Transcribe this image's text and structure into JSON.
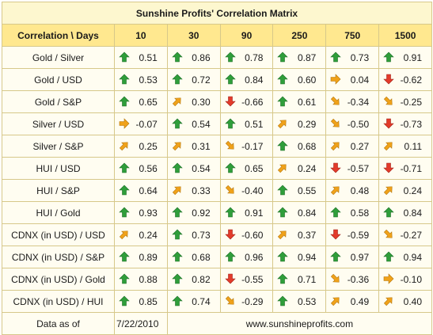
{
  "title": "Sunshine Profits' Correlation Matrix",
  "header": {
    "corner": "Correlation \\ Days",
    "days": [
      "10",
      "30",
      "90",
      "250",
      "750",
      "1500"
    ]
  },
  "arrow_colors": {
    "up": "#2f9e3a",
    "down": "#e33b2b",
    "diag": "#f0a21a",
    "flat": "#f0a21a"
  },
  "rows": [
    {
      "label": "Gold / Silver",
      "cells": [
        {
          "v": "0.51",
          "a": "up"
        },
        {
          "v": "0.86",
          "a": "up"
        },
        {
          "v": "0.78",
          "a": "up"
        },
        {
          "v": "0.87",
          "a": "up"
        },
        {
          "v": "0.73",
          "a": "up"
        },
        {
          "v": "0.91",
          "a": "up"
        }
      ]
    },
    {
      "label": "Gold / USD",
      "cells": [
        {
          "v": "0.53",
          "a": "up"
        },
        {
          "v": "0.72",
          "a": "up"
        },
        {
          "v": "0.84",
          "a": "up"
        },
        {
          "v": "0.60",
          "a": "up"
        },
        {
          "v": "0.04",
          "a": "flat"
        },
        {
          "v": "-0.62",
          "a": "down"
        }
      ]
    },
    {
      "label": "Gold / S&P",
      "cells": [
        {
          "v": "0.65",
          "a": "up"
        },
        {
          "v": "0.30",
          "a": "up-right"
        },
        {
          "v": "-0.66",
          "a": "down"
        },
        {
          "v": "0.61",
          "a": "up"
        },
        {
          "v": "-0.34",
          "a": "down-right"
        },
        {
          "v": "-0.25",
          "a": "down-right"
        }
      ]
    },
    {
      "label": "Silver / USD",
      "cells": [
        {
          "v": "-0.07",
          "a": "flat"
        },
        {
          "v": "0.54",
          "a": "up"
        },
        {
          "v": "0.51",
          "a": "up"
        },
        {
          "v": "0.29",
          "a": "up-right"
        },
        {
          "v": "-0.50",
          "a": "down-right"
        },
        {
          "v": "-0.73",
          "a": "down"
        }
      ]
    },
    {
      "label": "Silver / S&P",
      "cells": [
        {
          "v": "0.25",
          "a": "up-right"
        },
        {
          "v": "0.31",
          "a": "up-right"
        },
        {
          "v": "-0.17",
          "a": "down-right"
        },
        {
          "v": "0.68",
          "a": "up"
        },
        {
          "v": "0.27",
          "a": "up-right"
        },
        {
          "v": "0.11",
          "a": "up-right"
        }
      ]
    },
    {
      "label": "HUI / USD",
      "cells": [
        {
          "v": "0.56",
          "a": "up"
        },
        {
          "v": "0.54",
          "a": "up"
        },
        {
          "v": "0.65",
          "a": "up"
        },
        {
          "v": "0.24",
          "a": "up-right"
        },
        {
          "v": "-0.57",
          "a": "down"
        },
        {
          "v": "-0.71",
          "a": "down"
        }
      ]
    },
    {
      "label": "HUI / S&P",
      "cells": [
        {
          "v": "0.64",
          "a": "up"
        },
        {
          "v": "0.33",
          "a": "up-right"
        },
        {
          "v": "-0.40",
          "a": "down-right"
        },
        {
          "v": "0.55",
          "a": "up"
        },
        {
          "v": "0.48",
          "a": "up-right"
        },
        {
          "v": "0.24",
          "a": "up-right"
        }
      ]
    },
    {
      "label": "HUI / Gold",
      "cells": [
        {
          "v": "0.93",
          "a": "up"
        },
        {
          "v": "0.92",
          "a": "up"
        },
        {
          "v": "0.91",
          "a": "up"
        },
        {
          "v": "0.84",
          "a": "up"
        },
        {
          "v": "0.58",
          "a": "up"
        },
        {
          "v": "0.84",
          "a": "up"
        }
      ]
    },
    {
      "label": "CDNX (in USD) / USD",
      "cells": [
        {
          "v": "0.24",
          "a": "up-right"
        },
        {
          "v": "0.73",
          "a": "up"
        },
        {
          "v": "-0.60",
          "a": "down"
        },
        {
          "v": "0.37",
          "a": "up-right"
        },
        {
          "v": "-0.59",
          "a": "down"
        },
        {
          "v": "-0.27",
          "a": "down-right"
        }
      ]
    },
    {
      "label": "CDNX (in USD) / S&P",
      "cells": [
        {
          "v": "0.89",
          "a": "up"
        },
        {
          "v": "0.68",
          "a": "up"
        },
        {
          "v": "0.96",
          "a": "up"
        },
        {
          "v": "0.94",
          "a": "up"
        },
        {
          "v": "0.97",
          "a": "up"
        },
        {
          "v": "0.94",
          "a": "up"
        }
      ]
    },
    {
      "label": "CDNX (in USD) / Gold",
      "cells": [
        {
          "v": "0.88",
          "a": "up"
        },
        {
          "v": "0.82",
          "a": "up"
        },
        {
          "v": "-0.55",
          "a": "down"
        },
        {
          "v": "0.71",
          "a": "up"
        },
        {
          "v": "-0.36",
          "a": "down-right"
        },
        {
          "v": "-0.10",
          "a": "flat"
        }
      ]
    },
    {
      "label": "CDNX (in USD) / HUI",
      "cells": [
        {
          "v": "0.85",
          "a": "up"
        },
        {
          "v": "0.74",
          "a": "up"
        },
        {
          "v": "-0.29",
          "a": "down-right"
        },
        {
          "v": "0.53",
          "a": "up"
        },
        {
          "v": "0.49",
          "a": "up-right"
        },
        {
          "v": "0.40",
          "a": "up-right"
        }
      ]
    }
  ],
  "footer": {
    "label": "Data as of",
    "date": "7/22/2010",
    "site": "www.sunshineprofits.com"
  }
}
